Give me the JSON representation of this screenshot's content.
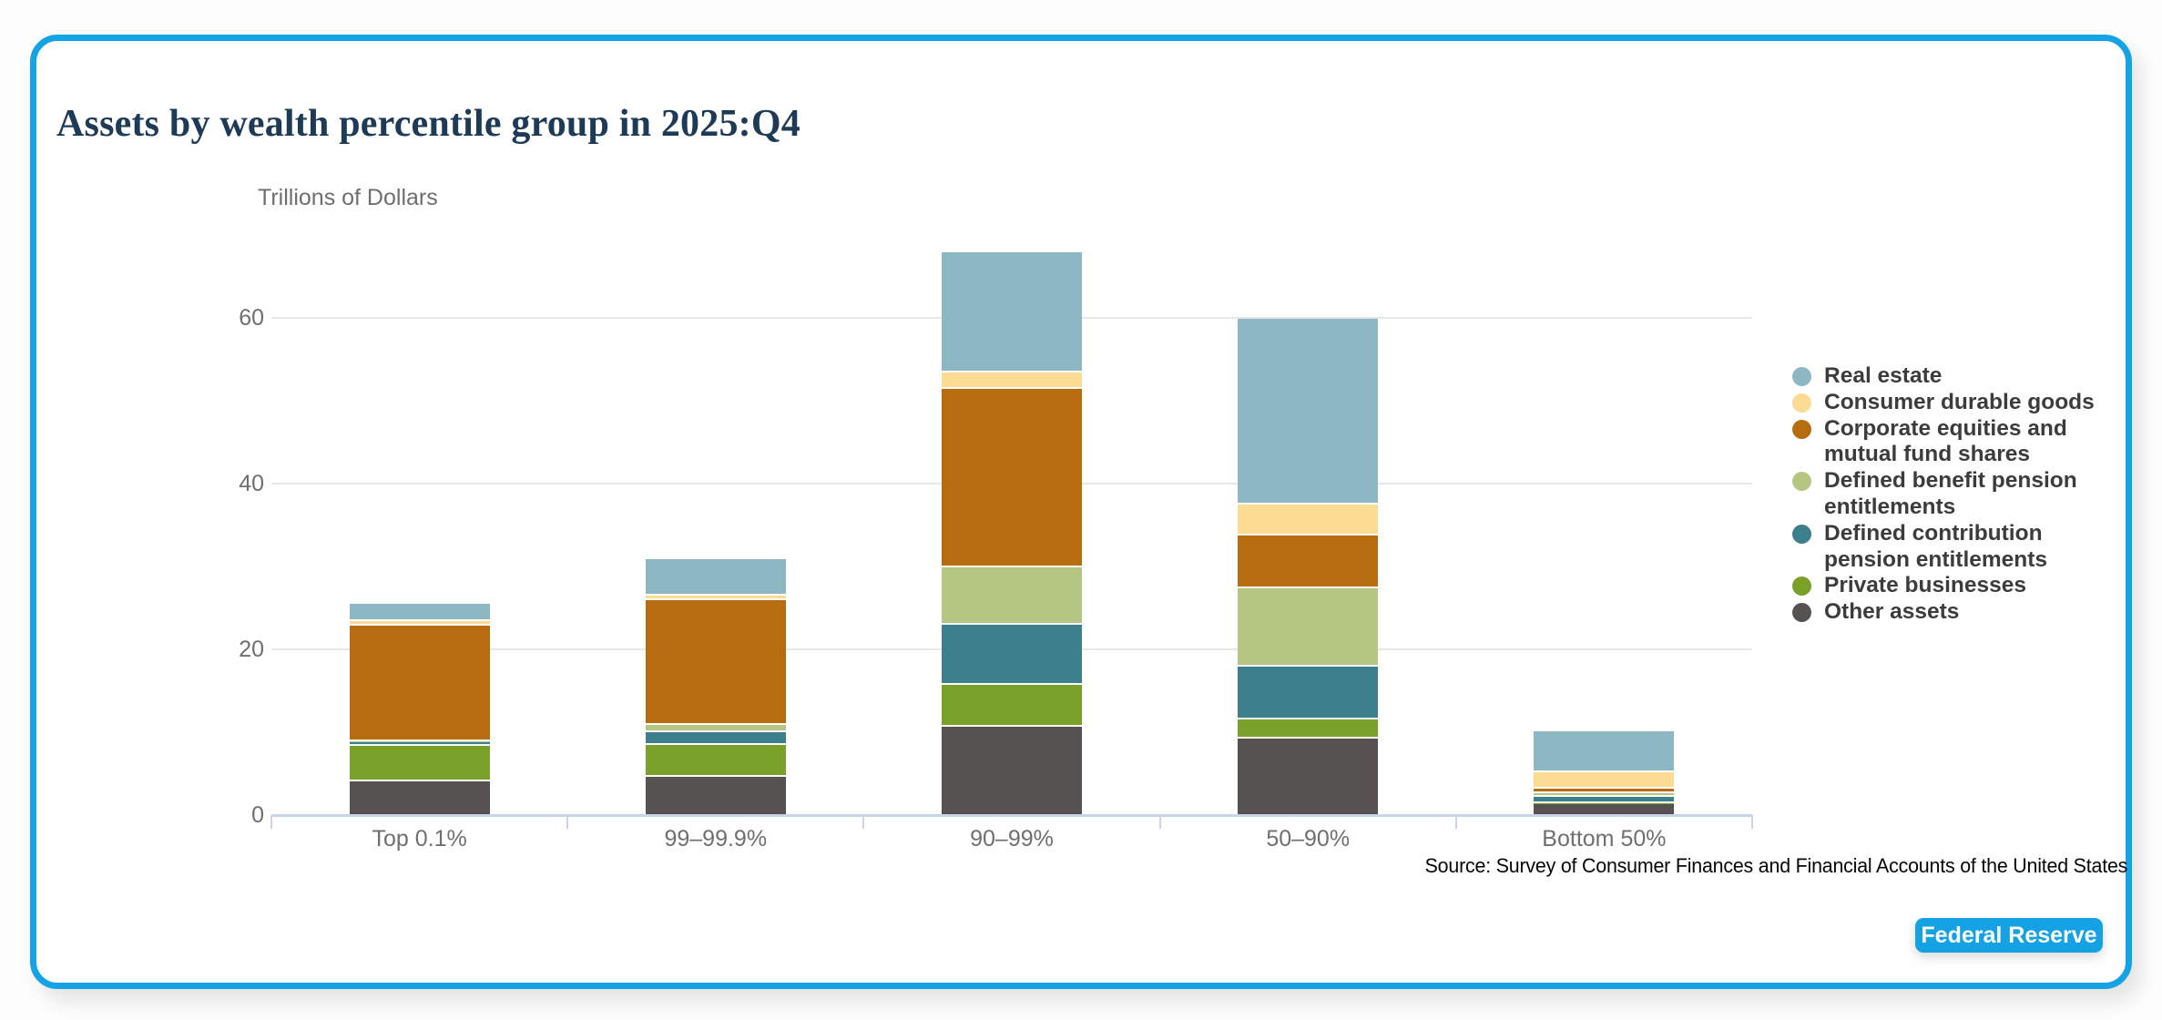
{
  "page": {
    "title": "Assets by wealth percentile group in 2025:Q4",
    "y_axis_title": "Trillions of Dollars",
    "source": "Source: Survey of Consumer Finances and Financial Accounts of the United States",
    "brand_button": "Federal Reserve",
    "colors": {
      "card_border": "#14a3e4",
      "button": "#14a2e5",
      "title_text": "#1d3a56",
      "axis_line": "#c9d3ea",
      "gridline": "#e7e7ea",
      "axis_text": "#6f6f6f",
      "legend_text": "#3c3c3c"
    }
  },
  "chart_data": {
    "type": "bar",
    "stacked": true,
    "title": "Assets by wealth percentile group in 2025:Q4",
    "xlabel": "",
    "ylabel": "Trillions of Dollars",
    "categories": [
      "Top 0.1%",
      "99–99.9%",
      "90–99%",
      "50–90%",
      "Bottom 50%"
    ],
    "y_ticks": [
      0,
      20,
      40,
      60
    ],
    "ylim": [
      0,
      72
    ],
    "grid": "horizontal",
    "legend_position": "right",
    "series_note": "series listed bottom-to-top of stack; values in trillions of dollars per category",
    "series": [
      {
        "name": "Other assets",
        "color": "#555251",
        "values": [
          4.2,
          4.7,
          10.8,
          9.3,
          1.4
        ]
      },
      {
        "name": "Private businesses",
        "color": "#79a028",
        "values": [
          4.3,
          3.9,
          5.0,
          2.3,
          0.1
        ]
      },
      {
        "name": "Defined contribution pension entitlements",
        "color": "#3d808d",
        "values": [
          0.4,
          1.5,
          7.3,
          6.4,
          0.8
        ]
      },
      {
        "name": "Defined benefit pension entitlements",
        "color": "#b5c682",
        "values": [
          0.15,
          0.9,
          6.9,
          9.4,
          0.4
        ]
      },
      {
        "name": "Corporate equities and mutual fund shares",
        "color": "#b76c0f",
        "values": [
          13.9,
          15.0,
          21.5,
          6.4,
          0.6
        ]
      },
      {
        "name": "Consumer durable goods",
        "color": "#fcdb92",
        "values": [
          0.6,
          0.6,
          2.0,
          3.7,
          2.0
        ]
      },
      {
        "name": "Real estate",
        "color": "#8eb7c4",
        "values": [
          2.0,
          4.4,
          14.5,
          22.5,
          4.9
        ]
      }
    ],
    "totals": [
      25.6,
      31.0,
      68.0,
      60.0,
      10.2
    ]
  }
}
